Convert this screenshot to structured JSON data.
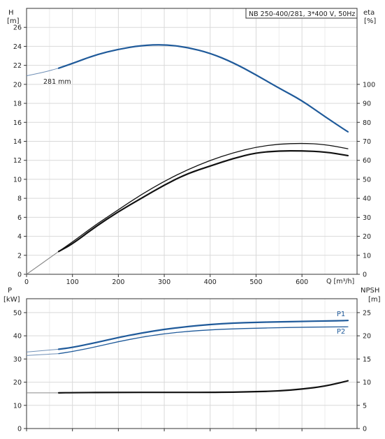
{
  "chart_data": [
    {
      "type": "line",
      "panel": "upper",
      "legend_box": "NB 250-400/281, 3*400 V, 50Hz",
      "y_left_label": [
        "H",
        "[m]"
      ],
      "y_right_label": [
        "eta",
        "[%]"
      ],
      "x_label": "Q [m³/h]",
      "x_ticks": [
        "0",
        "100",
        "200",
        "300",
        "400",
        "500",
        "600"
      ],
      "x_tick_values": [
        0,
        100,
        200,
        300,
        400,
        500,
        600
      ],
      "y_left_ticks": [
        "0",
        "2",
        "4",
        "6",
        "8",
        "10",
        "12",
        "14",
        "16",
        "18",
        "20",
        "22",
        "24",
        "26"
      ],
      "y_left_tick_values": [
        0,
        2,
        4,
        6,
        8,
        10,
        12,
        14,
        16,
        18,
        20,
        22,
        24,
        26
      ],
      "y_right_ticks": [
        "0",
        "10",
        "20",
        "30",
        "40",
        "50",
        "60",
        "70",
        "80",
        "90",
        "100"
      ],
      "y_right_tick_values": [
        0,
        10,
        20,
        30,
        40,
        50,
        60,
        70,
        80,
        90,
        100
      ],
      "xlim": [
        0,
        720
      ],
      "ylim_left": [
        0,
        28
      ],
      "ylim_right": [
        0,
        140
      ],
      "annotation": "281 mm",
      "grid": true,
      "series": [
        {
          "axis": "left",
          "color": "#1f5a9a",
          "x": [
            0,
            40,
            70,
            100,
            150,
            200,
            250,
            300,
            350,
            400,
            450,
            500,
            550,
            600,
            650,
            700
          ],
          "y": [
            20.9,
            21.3,
            21.7,
            22.2,
            23.1,
            23.7,
            24.1,
            24.2,
            23.9,
            23.3,
            22.3,
            21.0,
            19.6,
            18.3,
            16.6,
            15.0
          ]
        },
        {
          "axis": "right",
          "color": "#111111",
          "x": [
            0,
            70,
            100,
            150,
            200,
            250,
            300,
            350,
            400,
            450,
            500,
            550,
            600,
            650,
            700
          ],
          "y": [
            0,
            12,
            17,
            26,
            34,
            42,
            49,
            55,
            60,
            64,
            67,
            68.6,
            69,
            68.4,
            66.1
          ]
        },
        {
          "axis": "right",
          "color": "#111111",
          "x": [
            0,
            70,
            100,
            150,
            200,
            250,
            300,
            350,
            400,
            450,
            500,
            550,
            600,
            650,
            700
          ],
          "y": [
            0,
            12,
            16,
            25,
            33,
            40,
            47,
            53,
            57,
            61,
            64,
            65,
            65,
            64.5,
            62.5
          ]
        }
      ]
    },
    {
      "type": "line",
      "panel": "lower",
      "y_left_label": [
        "P",
        "[kW]"
      ],
      "y_right_label": [
        "NPSH",
        "[m]"
      ],
      "y_left_ticks": [
        "0",
        "10",
        "20",
        "30",
        "40",
        "50"
      ],
      "y_left_tick_values": [
        0,
        10,
        20,
        30,
        40,
        50
      ],
      "y_right_ticks": [
        "0",
        "5",
        "10",
        "15",
        "20",
        "25"
      ],
      "y_right_tick_values": [
        0,
        5,
        10,
        15,
        20,
        25
      ],
      "xlim": [
        0,
        720
      ],
      "ylim_left": [
        0,
        56
      ],
      "ylim_right": [
        0,
        28
      ],
      "grid": true,
      "series": [
        {
          "name": "P1",
          "axis": "left",
          "color": "#1f5a9a",
          "x": [
            0,
            70,
            100,
            150,
            200,
            250,
            300,
            350,
            400,
            450,
            500,
            550,
            600,
            650,
            700
          ],
          "y": [
            33.0,
            34.2,
            35.0,
            37.0,
            39.3,
            41.2,
            42.8,
            44.0,
            44.9,
            45.5,
            45.8,
            46.0,
            46.2,
            46.4,
            46.6
          ]
        },
        {
          "name": "P2",
          "axis": "left",
          "color": "#1f5a9a",
          "x": [
            0,
            70,
            100,
            150,
            200,
            250,
            300,
            350,
            400,
            450,
            500,
            550,
            600,
            650,
            700
          ],
          "y": [
            31.5,
            32.3,
            33.2,
            35.2,
            37.5,
            39.4,
            40.9,
            41.9,
            42.6,
            43.0,
            43.3,
            43.5,
            43.7,
            43.8,
            43.9
          ]
        },
        {
          "axis": "right",
          "color": "#111111",
          "x": [
            0,
            70,
            100,
            200,
            300,
            400,
            450,
            500,
            550,
            600,
            650,
            700
          ],
          "y": [
            7.7,
            7.7,
            7.75,
            7.8,
            7.8,
            7.8,
            7.85,
            7.95,
            8.1,
            8.5,
            9.1,
            10.3
          ]
        }
      ]
    }
  ]
}
